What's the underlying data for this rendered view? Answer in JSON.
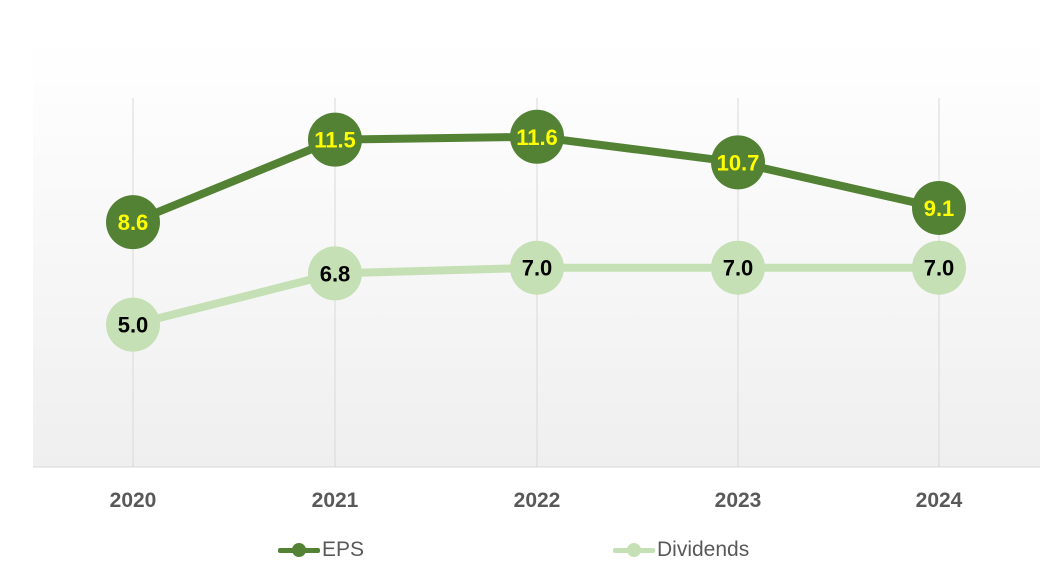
{
  "chart_data": {
    "type": "line",
    "categories": [
      "2020",
      "2021",
      "2022",
      "2023",
      "2024"
    ],
    "series": [
      {
        "name": "EPS",
        "values": [
          8.6,
          11.5,
          11.6,
          10.7,
          9.1
        ],
        "labels": [
          "8.6",
          "11.5",
          "11.6",
          "10.7",
          "9.1"
        ],
        "color": "#548235",
        "label_color": "#FFFF00"
      },
      {
        "name": "Dividends",
        "values": [
          5.0,
          6.8,
          7.0,
          7.0,
          7.0
        ],
        "labels": [
          "5.0",
          "6.8",
          "7.0",
          "7.0",
          "7.0"
        ],
        "color": "#C5E0B4",
        "label_color": "#000000"
      }
    ],
    "ylim": [
      0,
      15
    ],
    "grid": "vertical",
    "legend": "bottom",
    "plot_background": "gradient-white-to-light-gray"
  }
}
